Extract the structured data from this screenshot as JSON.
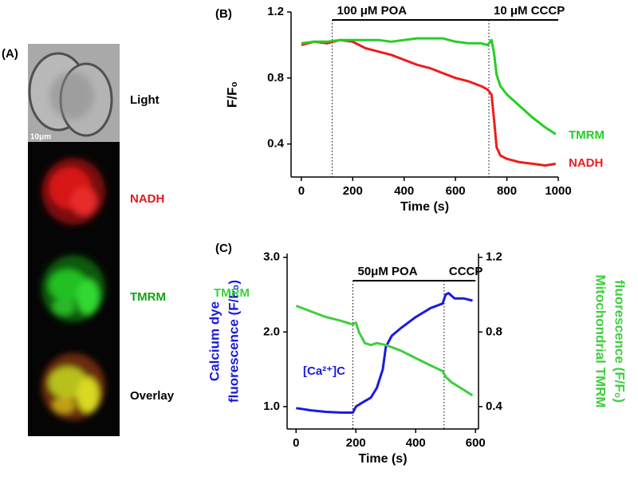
{
  "panel_a": {
    "label": "(A)",
    "scale": "10μm",
    "images": [
      {
        "label": "Light",
        "color": "#000000"
      },
      {
        "label": "NADH",
        "color": "#e8171a"
      },
      {
        "label": "TMRM",
        "color": "#13a313"
      },
      {
        "label": "Overlay",
        "color": "#000000"
      }
    ]
  },
  "chart_data": [
    {
      "type": "line",
      "title": "(B)",
      "ylabel": [
        "F/F₀"
      ],
      "xlabel": "Time (s)",
      "x": [
        0,
        50,
        100,
        150,
        200,
        250,
        300,
        350,
        400,
        450,
        500,
        550,
        600,
        650,
        700,
        725,
        740,
        750,
        760,
        775,
        800,
        850,
        900,
        950,
        990
      ],
      "series": [
        {
          "name": "NADH",
          "color": "#ee1c1c",
          "values": [
            1.0,
            1.02,
            1.01,
            1.03,
            1.02,
            0.98,
            0.96,
            0.94,
            0.91,
            0.88,
            0.86,
            0.83,
            0.8,
            0.78,
            0.75,
            0.73,
            0.7,
            0.55,
            0.38,
            0.33,
            0.31,
            0.29,
            0.28,
            0.27,
            0.28
          ]
        },
        {
          "name": "TMRM",
          "color": "#22d022",
          "values": [
            1.01,
            1.02,
            1.02,
            1.03,
            1.03,
            1.03,
            1.03,
            1.02,
            1.03,
            1.04,
            1.04,
            1.04,
            1.02,
            1.01,
            1.01,
            1.0,
            1.03,
            0.95,
            0.82,
            0.75,
            0.7,
            0.63,
            0.56,
            0.5,
            0.46
          ]
        }
      ],
      "xlim": [
        -40,
        1000
      ],
      "xticks": [
        0,
        200,
        400,
        600,
        800,
        1000
      ],
      "ylim": [
        0.2,
        1.2
      ],
      "yticks": [
        0.4,
        0.8,
        1.2
      ],
      "events": [
        {
          "label": "100 μM POA",
          "start": 120,
          "end": 730
        },
        {
          "label": "10 μM CCCP",
          "start": 730,
          "end": 1000
        }
      ]
    },
    {
      "type": "line",
      "title": "(C)",
      "ylabel": [
        "Calcium dye",
        "fluorescence (F/F₀)"
      ],
      "y2label": [
        "Mitochondrial TMRM",
        "fluorescence (F/F₀)"
      ],
      "xlabel": "Time (s)",
      "series": [
        {
          "name": "[Ca²⁺]C",
          "color": "#1a1ae0",
          "axis": "y",
          "x": [
            0,
            50,
            100,
            150,
            190,
            200,
            220,
            250,
            270,
            290,
            300,
            320,
            350,
            400,
            450,
            490,
            500,
            510,
            530,
            560,
            590
          ],
          "values": [
            0.98,
            0.95,
            0.93,
            0.92,
            0.92,
            1.0,
            1.05,
            1.12,
            1.25,
            1.5,
            1.8,
            1.95,
            2.05,
            2.2,
            2.32,
            2.38,
            2.5,
            2.52,
            2.45,
            2.45,
            2.42
          ]
        },
        {
          "name": "TMRM",
          "color": "#3ecf3e",
          "axis": "y2",
          "x": [
            0,
            50,
            100,
            150,
            190,
            200,
            210,
            230,
            250,
            270,
            300,
            350,
            400,
            450,
            490,
            500,
            520,
            560,
            590
          ],
          "values": [
            0.94,
            0.91,
            0.88,
            0.86,
            0.84,
            0.85,
            0.8,
            0.74,
            0.73,
            0.74,
            0.73,
            0.7,
            0.66,
            0.62,
            0.59,
            0.56,
            0.53,
            0.49,
            0.46
          ]
        }
      ],
      "xlim": [
        -30,
        610
      ],
      "xticks": [
        0,
        200,
        400,
        600
      ],
      "ylim": [
        0.7,
        3.05
      ],
      "yticks": [
        {
          "value": 1,
          "label": "1.0"
        },
        {
          "value": 2,
          "label": "2.0"
        },
        {
          "value": 3,
          "label": "3.0"
        }
      ],
      "y2lim": [
        0.28,
        1.22
      ],
      "y2ticks": [
        0.4,
        0.8,
        1.2
      ],
      "events": [
        {
          "label": "50μM POA",
          "start": 190,
          "end": 495
        },
        {
          "label": "CCCP",
          "start": 495,
          "end": 600
        }
      ]
    }
  ]
}
